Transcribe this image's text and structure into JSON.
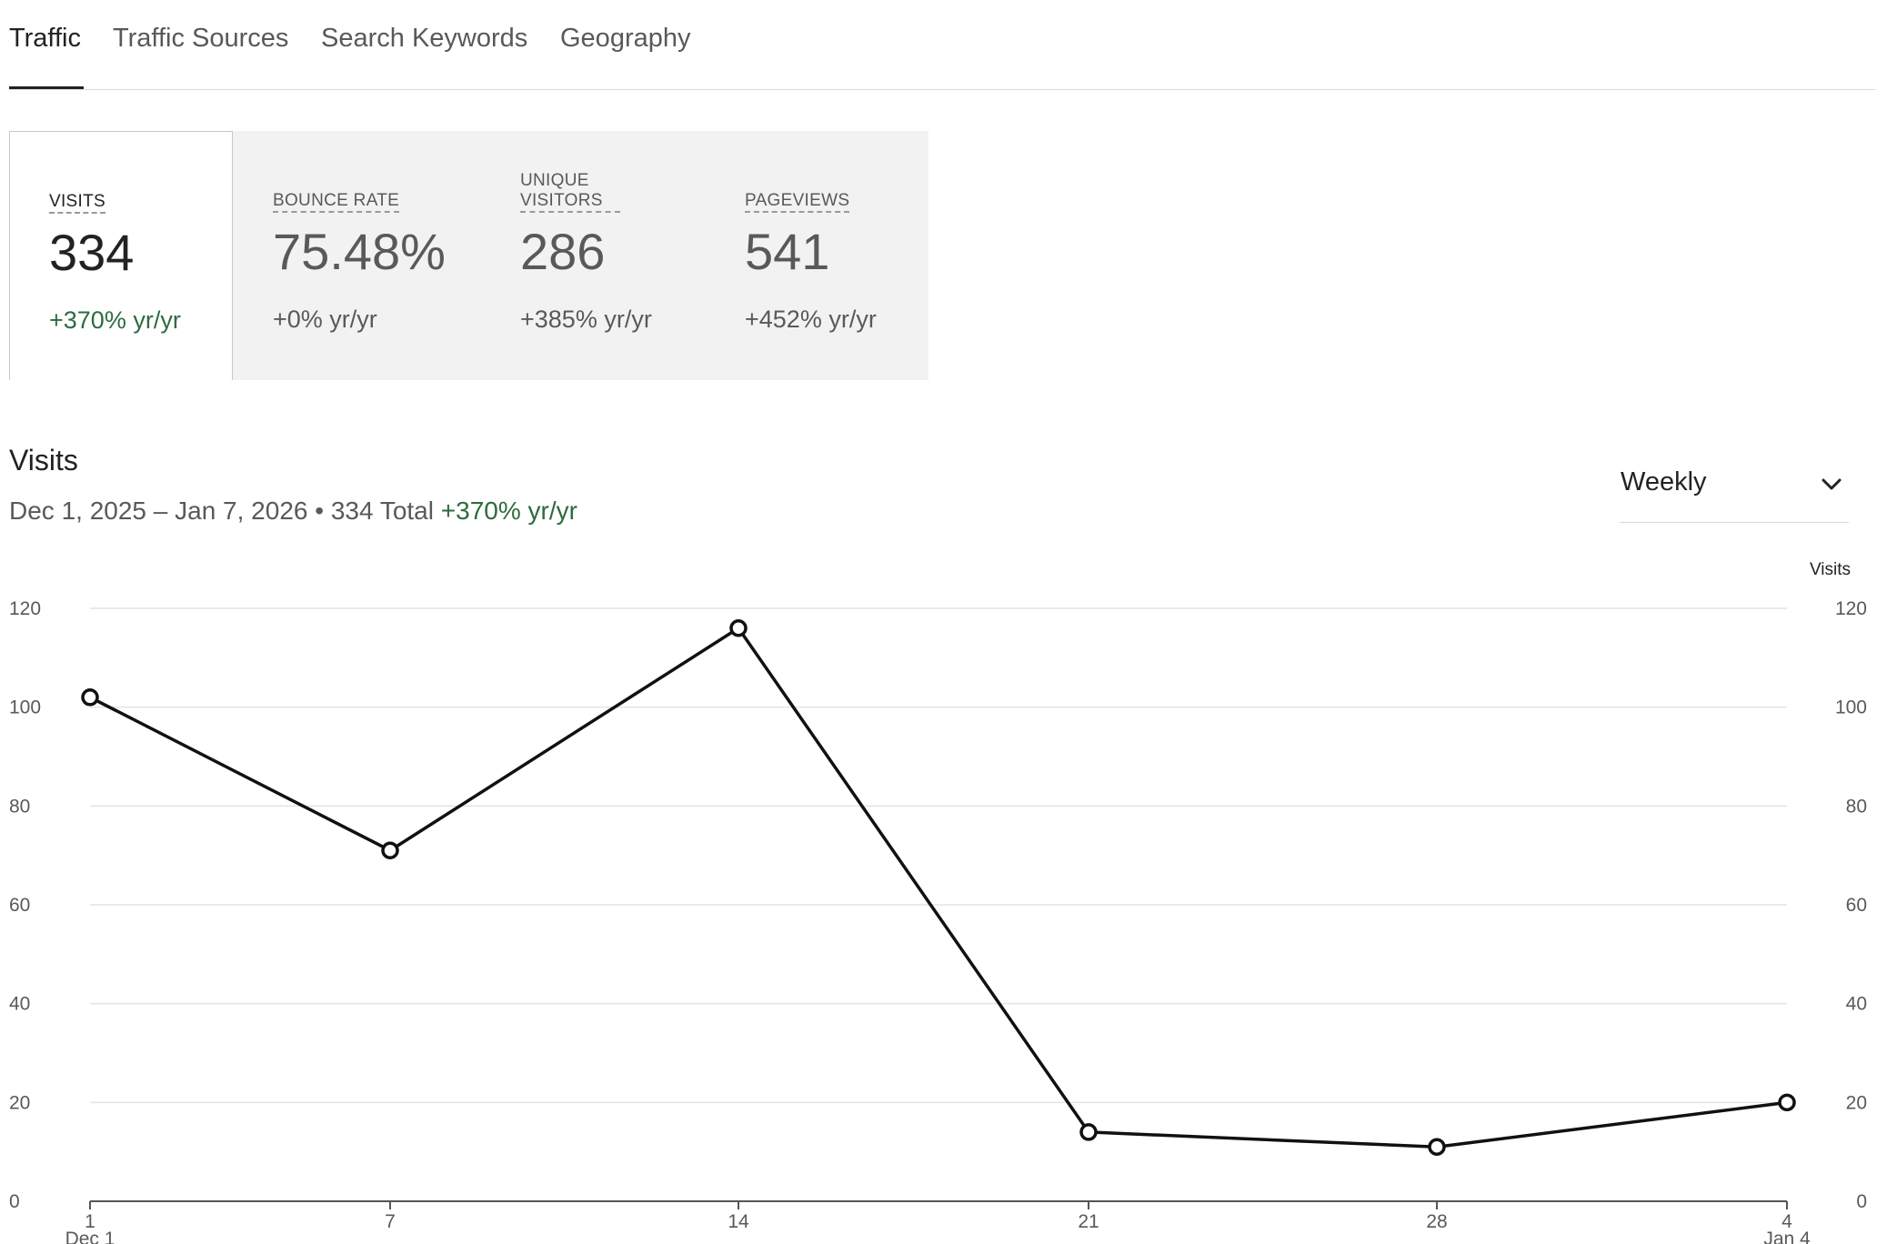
{
  "tabs": [
    {
      "label": "Traffic",
      "active": true
    },
    {
      "label": "Traffic Sources",
      "active": false
    },
    {
      "label": "Search Keywords",
      "active": false
    },
    {
      "label": "Geography",
      "active": false
    }
  ],
  "metrics": [
    {
      "label": "VISITS",
      "value": "334",
      "change": "+370% yr/yr",
      "selected": true
    },
    {
      "label": "BOUNCE RATE",
      "value": "75.48%",
      "change": "+0% yr/yr",
      "selected": false
    },
    {
      "label": "UNIQUE VISITORS",
      "value": "286",
      "change": "+385% yr/yr",
      "selected": false
    },
    {
      "label": "PAGEVIEWS",
      "value": "541",
      "change": "+452% yr/yr",
      "selected": false
    }
  ],
  "chart_header": {
    "title": "Visits",
    "date_range": "Dec 1, 2025 – Jan 7, 2026",
    "separator": "•",
    "total": "334 Total",
    "change": "+370% yr/yr"
  },
  "interval_dropdown": {
    "value": "Weekly",
    "icon": "chevron-down-icon"
  },
  "colors": {
    "line": "#111111",
    "positive": "#2e6b3f",
    "grid": "#e3e3e3",
    "card_background": "#f2f2f2"
  },
  "chart_data": {
    "type": "line",
    "title": "Visits",
    "xlabel": "",
    "ylabel": "",
    "y2label": "Visits",
    "x": [
      "1",
      "7",
      "14",
      "21",
      "28",
      "4"
    ],
    "x_sublabels": [
      "Dec 1",
      "",
      "",
      "",
      "",
      "Jan 4"
    ],
    "series": [
      {
        "values": [
          102,
          71,
          116,
          14,
          11,
          20
        ]
      }
    ],
    "ylim": [
      0,
      120
    ],
    "yticks": [
      0,
      20,
      40,
      60,
      80,
      100,
      120
    ],
    "grid": true,
    "legend": "none"
  }
}
